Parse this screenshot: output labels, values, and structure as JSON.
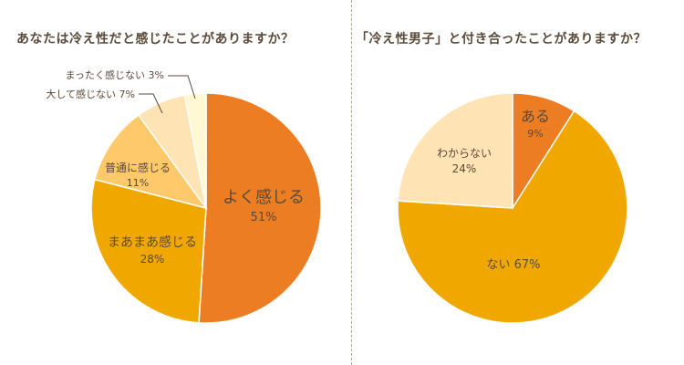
{
  "chart_data": [
    {
      "type": "pie",
      "title": "あなたは冷え性だと感じたことがありますか？",
      "slices": [
        {
          "label": "よく感じる",
          "value": 51,
          "value_label": "51%",
          "color": "#ec7d22"
        },
        {
          "label": "まあまあ感じる",
          "value": 28,
          "value_label": "28%",
          "color": "#f0a800"
        },
        {
          "label": "普通に感じる",
          "value": 11,
          "value_label": "11%",
          "color": "#fdc96a"
        },
        {
          "label": "大して感じない",
          "value": 7,
          "value_label": "7%",
          "color": "#fee3b4"
        },
        {
          "label": "まったく感じない",
          "value": 3,
          "value_label": "3%",
          "color": "#fff8d2"
        }
      ]
    },
    {
      "type": "pie",
      "title": "「冷え性男子」と付き合ったことがありますか？",
      "slices": [
        {
          "label": "ある",
          "value": 9,
          "value_label": "9%",
          "color": "#ec7d22"
        },
        {
          "label": "ない",
          "value": 67,
          "value_label": "67%",
          "color": "#f0a800"
        },
        {
          "label": "わからない",
          "value": 24,
          "value_label": "24%",
          "color": "#fee3b4"
        }
      ]
    }
  ]
}
